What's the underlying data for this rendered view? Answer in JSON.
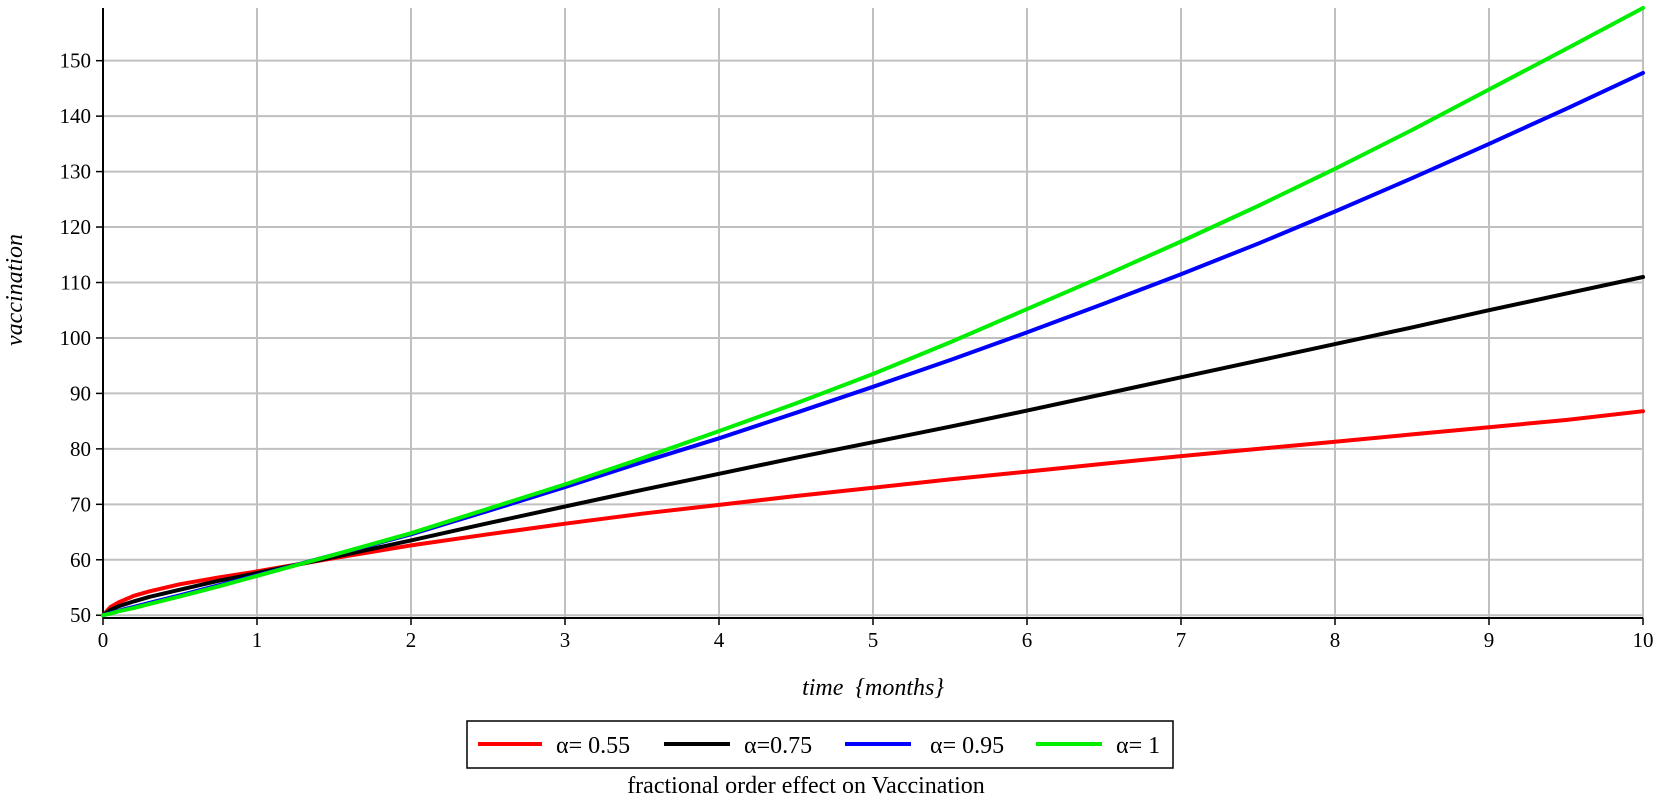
{
  "chart_data": {
    "type": "line",
    "title": "",
    "caption": "fractional order effect on Vaccination",
    "xlabel_main": "time",
    "xlabel_unit": "{months}",
    "ylabel": "vaccination",
    "xlim": [
      0,
      10
    ],
    "ylim": [
      49.5,
      159.5
    ],
    "xticks": [
      0,
      1,
      2,
      3,
      4,
      5,
      6,
      7,
      8,
      9,
      10
    ],
    "yticks": [
      50,
      60,
      70,
      80,
      90,
      100,
      110,
      120,
      130,
      140,
      150
    ],
    "grid": true,
    "legend_position": "bottom",
    "x": [
      0,
      0.05,
      0.1,
      0.2,
      0.3,
      0.5,
      0.75,
      1,
      1.5,
      2,
      2.5,
      3,
      3.5,
      4,
      4.5,
      5,
      5.5,
      6,
      6.5,
      7,
      7.5,
      8,
      8.5,
      9,
      9.5,
      10
    ],
    "series": [
      {
        "name": "α= 0.55",
        "color": "#ff0000",
        "values": [
          50.0,
          51.5,
          52.3,
          53.5,
          54.3,
          55.6,
          56.8,
          57.9,
          60.3,
          62.6,
          64.6,
          66.5,
          68.3,
          69.9,
          71.5,
          73.0,
          74.5,
          75.9,
          77.3,
          78.7,
          80.0,
          81.3,
          82.6,
          83.9,
          85.2,
          86.8
        ]
      },
      {
        "name": "α=0.75",
        "color": "#000000",
        "values": [
          50.0,
          51.0,
          51.6,
          52.5,
          53.3,
          54.6,
          56.2,
          57.6,
          60.5,
          63.5,
          66.6,
          69.6,
          72.6,
          75.5,
          78.4,
          81.2,
          84.0,
          86.9,
          89.9,
          92.9,
          95.9,
          98.9,
          101.9,
          105.0,
          108.0,
          111.0
        ]
      },
      {
        "name": "α= 0.95",
        "color": "#0000ff",
        "values": [
          50.0,
          50.4,
          50.8,
          51.5,
          52.2,
          53.6,
          55.4,
          57.2,
          60.9,
          64.6,
          68.8,
          73.1,
          77.6,
          81.9,
          86.5,
          91.2,
          96.0,
          101.0,
          106.2,
          111.5,
          117.0,
          122.8,
          128.8,
          135.0,
          141.3,
          147.8
        ]
      },
      {
        "name": "α= 1",
        "color": "#00ee00",
        "values": [
          50.0,
          50.3,
          50.7,
          51.3,
          52.0,
          53.4,
          55.2,
          57.1,
          60.9,
          64.8,
          69.2,
          73.6,
          78.3,
          83.2,
          88.2,
          93.5,
          99.2,
          105.2,
          111.2,
          117.4,
          123.8,
          130.5,
          137.5,
          144.8,
          152.1,
          159.5
        ]
      }
    ]
  }
}
